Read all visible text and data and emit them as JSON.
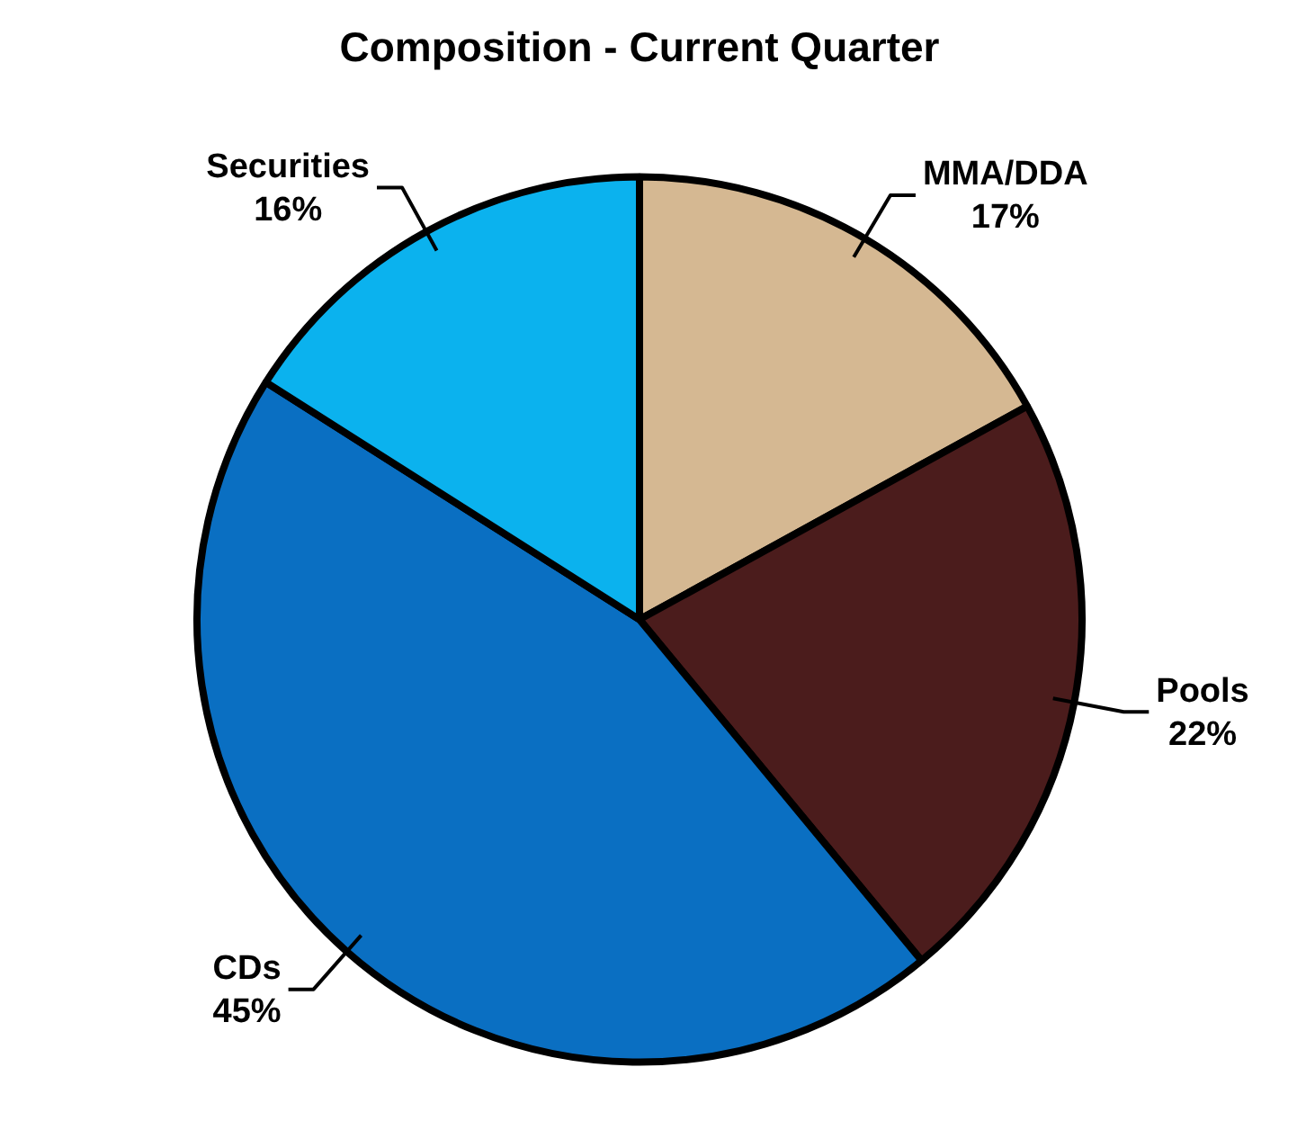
{
  "chart_data": {
    "type": "pie",
    "title": "Composition - Current Quarter",
    "categories": [
      "MMA/DDA",
      "Pools",
      "CDs",
      "Securities"
    ],
    "values": [
      17,
      22,
      45,
      16
    ],
    "value_labels": [
      "17%",
      "22%",
      "45%",
      "16%"
    ],
    "colors": [
      "#d5b892",
      "#4b1c1c",
      "#0a6fc2",
      "#0bb2ee"
    ]
  }
}
